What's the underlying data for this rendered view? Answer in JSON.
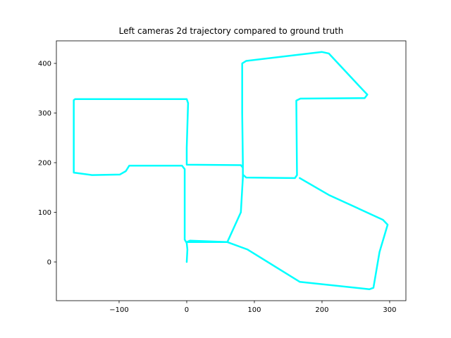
{
  "chart_data": {
    "type": "line",
    "title": "Left cameras 2d trajectory compared to ground truth",
    "x": [
      0,
      1,
      0,
      -3,
      -3,
      -7,
      -85,
      -90,
      -99,
      -140,
      -167,
      -167,
      -165,
      0,
      2,
      0,
      0,
      80,
      83,
      83,
      88,
      160,
      163,
      162,
      168,
      263,
      267,
      258,
      210,
      200,
      88,
      82,
      82,
      83,
      83,
      80,
      60,
      5,
      0,
      60,
      90,
      167,
      270,
      276,
      285,
      297,
      290,
      210,
      167
    ],
    "series": [
      {
        "color": "cyan",
        "values": [
          0,
          25,
          38,
          45,
          187,
          194,
          194,
          183,
          176,
          175,
          180,
          326,
          328,
          328,
          320,
          230,
          196,
          195,
          190,
          176,
          170,
          169,
          175,
          325,
          329,
          330,
          337,
          350,
          420,
          423,
          405,
          400,
          300,
          200,
          170,
          100,
          40,
          43,
          40,
          40,
          25,
          -40,
          -55,
          -52,
          20,
          75,
          85,
          135,
          169
        ]
      }
    ],
    "xlim": [
      -192.7,
      324
    ],
    "ylim": [
      -78,
      445.4
    ],
    "xticks": [
      {
        "value": -100,
        "label": "−100"
      },
      0,
      100,
      200,
      300
    ],
    "yticks": [
      0,
      100,
      200,
      300,
      400
    ]
  }
}
